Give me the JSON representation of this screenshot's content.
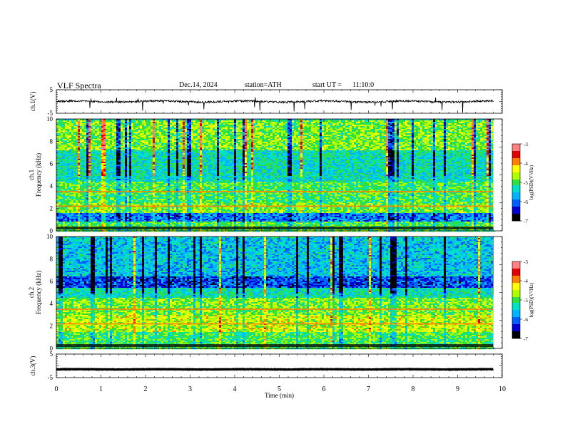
{
  "header": {
    "title": "VLF  Spectra",
    "date": "Dec.14, 2024",
    "station": "station=ATH",
    "start_label": "start  UT  =",
    "start_time": "11:10:0"
  },
  "chart_data": [
    {
      "type": "line",
      "panel": "ch1",
      "ylabel": "ch.1(V)",
      "y_ticks": [
        "5",
        "-5"
      ],
      "ylim": [
        -5,
        5
      ],
      "xlim": [
        0,
        10
      ],
      "baseline": 0,
      "noise_amplitude": 0.4,
      "data_end_min": 9.8,
      "color": "#000000"
    },
    {
      "type": "heatmap",
      "panel": "ch1-spectrogram",
      "ylabel_lines": [
        "ch.1",
        "Frequency (kHz)"
      ],
      "y_ticks": [
        "0",
        "2",
        "4",
        "6",
        "8",
        "10"
      ],
      "ylim": [
        0,
        10
      ],
      "xlim": [
        0,
        10
      ],
      "data_end_min": 9.8,
      "colorbar": {
        "label": "log(PSD)(V²/Hz)",
        "ticks": [
          "-3",
          "-4",
          "-5",
          "-6",
          "-7"
        ],
        "range": [
          -7,
          -3
        ]
      },
      "bands_khz": [
        {
          "from": 0.0,
          "to": 0.9,
          "level": 0.5
        },
        {
          "from": 0.9,
          "to": 1.7,
          "level": 0.25
        },
        {
          "from": 1.7,
          "to": 2.5,
          "level": 0.55
        },
        {
          "from": 2.5,
          "to": 4.5,
          "level": 0.5
        },
        {
          "from": 4.5,
          "to": 5.6,
          "level": 0.4
        },
        {
          "from": 5.6,
          "to": 7.2,
          "level": 0.42
        },
        {
          "from": 7.2,
          "to": 10.0,
          "level": 0.55
        }
      ]
    },
    {
      "type": "heatmap",
      "panel": "ch2-spectrogram",
      "ylabel_lines": [
        "ch.2",
        "Frequency (kHz)"
      ],
      "y_ticks": [
        "0",
        "2",
        "4",
        "6",
        "8",
        "10"
      ],
      "ylim": [
        0,
        10
      ],
      "xlim": [
        0,
        10
      ],
      "data_end_min": 9.8,
      "colorbar": {
        "label": "log(PSD)(V²/Hz)",
        "ticks": [
          "-3",
          "-4",
          "-5",
          "-6",
          "-7"
        ],
        "range": [
          -7,
          -3
        ]
      },
      "bands_khz": [
        {
          "from": 0.0,
          "to": 1.5,
          "level": 0.5
        },
        {
          "from": 1.5,
          "to": 3.0,
          "level": 0.62
        },
        {
          "from": 3.0,
          "to": 4.6,
          "level": 0.55
        },
        {
          "from": 4.6,
          "to": 5.5,
          "level": 0.42
        },
        {
          "from": 5.5,
          "to": 6.5,
          "level": 0.2
        },
        {
          "from": 6.5,
          "to": 10.0,
          "level": 0.35
        }
      ]
    },
    {
      "type": "line",
      "panel": "ch3",
      "ylabel": "ch.3(V)",
      "y_ticks": [
        "5",
        "-5"
      ],
      "ylim": [
        -5,
        5
      ],
      "xlim": [
        0,
        10
      ],
      "baseline": -1.5,
      "noise_amplitude": 0.08,
      "data_end_min": 9.8,
      "color": "#000000",
      "xlabel": "Time  (min)",
      "x_ticks": [
        "0",
        "1",
        "2",
        "3",
        "4",
        "5",
        "6",
        "7",
        "8",
        "9",
        "10"
      ]
    }
  ],
  "colors": {
    "colormap": [
      "#000000",
      "#0000d0",
      "#0060ff",
      "#00b4ff",
      "#00e0c8",
      "#30e040",
      "#b0ff00",
      "#ffff00",
      "#ff8000",
      "#e00000",
      "#ff8080",
      "#ffffff"
    ]
  }
}
